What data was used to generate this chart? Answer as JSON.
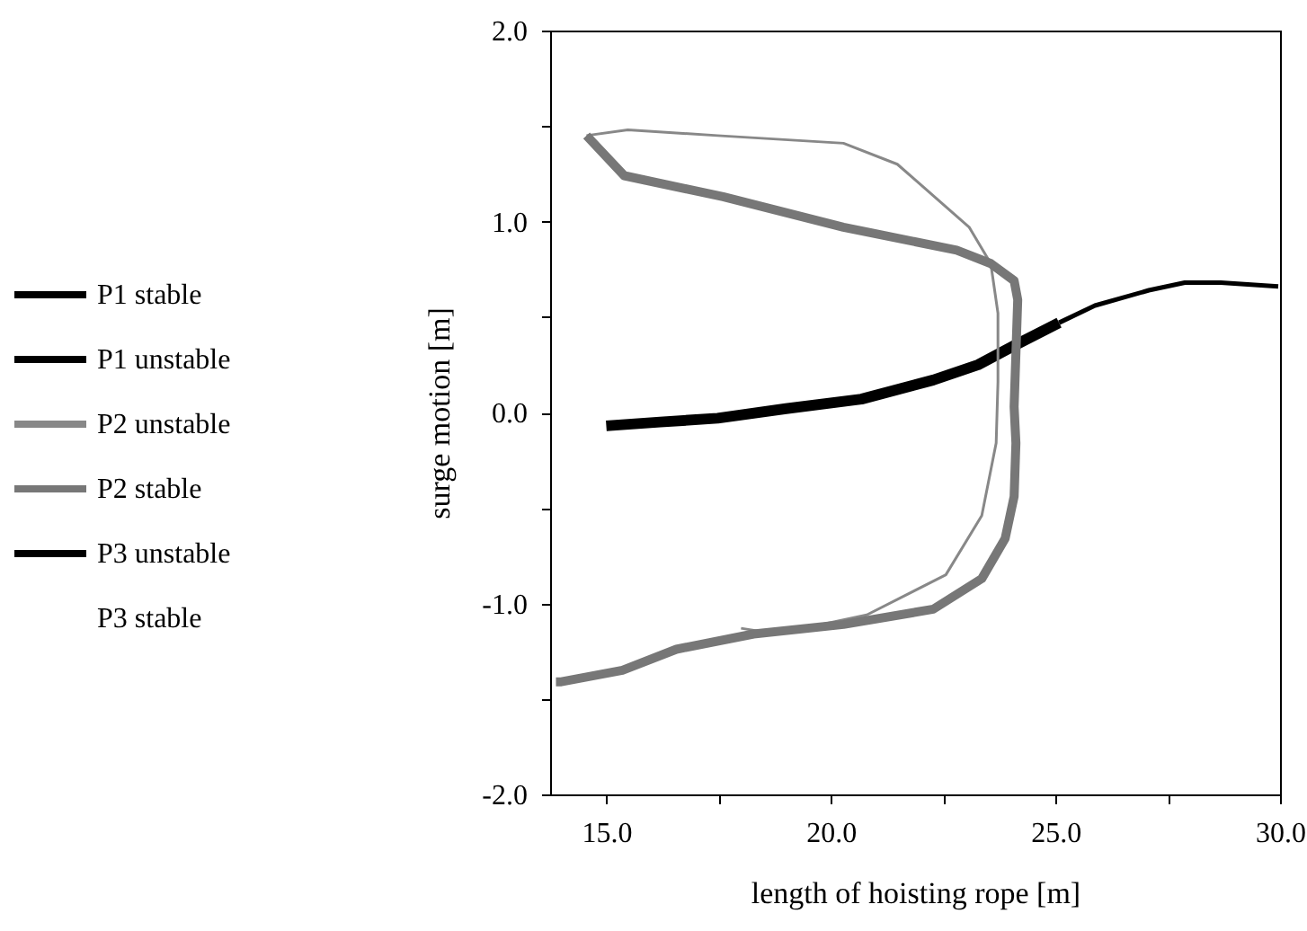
{
  "chart_data": {
    "type": "line",
    "xlabel": "length of hoisting rope [m]",
    "ylabel": "surge motion [m]",
    "xlim": [
      13.75,
      30
    ],
    "ylim": [
      -2,
      2
    ],
    "xticks": [
      {
        "value": 15,
        "label": "15.0"
      },
      {
        "value": 17.5,
        "label": null
      },
      {
        "value": 20,
        "label": "20.0"
      },
      {
        "value": 22.5,
        "label": null
      },
      {
        "value": 25,
        "label": "25.0"
      },
      {
        "value": 27.5,
        "label": null
      },
      {
        "value": 30,
        "label": "30.0"
      }
    ],
    "yticks": [
      {
        "value": -2,
        "label": "-2.0"
      },
      {
        "value": -1.5,
        "label": null
      },
      {
        "value": -1,
        "label": "-1.0"
      },
      {
        "value": -0.5,
        "label": null
      },
      {
        "value": 0,
        "label": "0.0"
      },
      {
        "value": 0.5,
        "label": null
      },
      {
        "value": 1,
        "label": "1.0"
      },
      {
        "value": 1.5,
        "label": null
      },
      {
        "value": 2,
        "label": "2.0"
      }
    ],
    "legend": "left",
    "grid": false,
    "series": [
      {
        "name": "P1 stable",
        "color": "#000000",
        "x": [
          15,
          16.2,
          17.48,
          19,
          20.68,
          22.28,
          23.28,
          24.08,
          25.08
        ],
        "values": [
          -0.07,
          -0.05,
          -0.03,
          0.02,
          0.07,
          0.17,
          0.25,
          0.35,
          0.47
        ]
      },
      {
        "name": "P1 unstable",
        "color": "#000000",
        "x": [
          25.08,
          25.88,
          27.08,
          27.88,
          28.68,
          29.96
        ],
        "values": [
          0.47,
          0.56,
          0.64,
          0.68,
          0.68,
          0.66
        ]
      },
      {
        "name": "P2 unstable",
        "color": "#888888",
        "x": [
          14.56,
          15.48,
          17.48,
          20.28,
          21.48,
          23.08,
          23.56,
          23.72,
          23.72,
          23.68,
          23.36,
          22.56,
          20.8,
          18.8,
          18.0
        ],
        "values": [
          1.45,
          1.48,
          1.45,
          1.41,
          1.3,
          0.97,
          0.78,
          0.52,
          0.16,
          -0.16,
          -0.54,
          -0.85,
          -1.06,
          -1.16,
          -1.13
        ]
      },
      {
        "name": "P2 stable",
        "color": "#777777",
        "x": [
          14.56,
          15.4,
          17.6,
          20.28,
          22.8,
          23.56,
          24.08,
          24.16,
          24.08,
          24.12,
          24.08,
          23.88,
          23.36,
          22.28,
          20.28,
          18.28,
          16.56,
          15.36,
          14.0,
          13.88
        ],
        "values": [
          1.45,
          1.24,
          1.13,
          0.97,
          0.85,
          0.78,
          0.69,
          0.59,
          0.03,
          -0.16,
          -0.44,
          -0.66,
          -0.87,
          -1.03,
          -1.11,
          -1.16,
          -1.24,
          -1.35,
          -1.41,
          -1.41
        ]
      },
      {
        "name": "P3 unstable",
        "color": "#000000"
      },
      {
        "name": "P3 stable"
      }
    ]
  }
}
